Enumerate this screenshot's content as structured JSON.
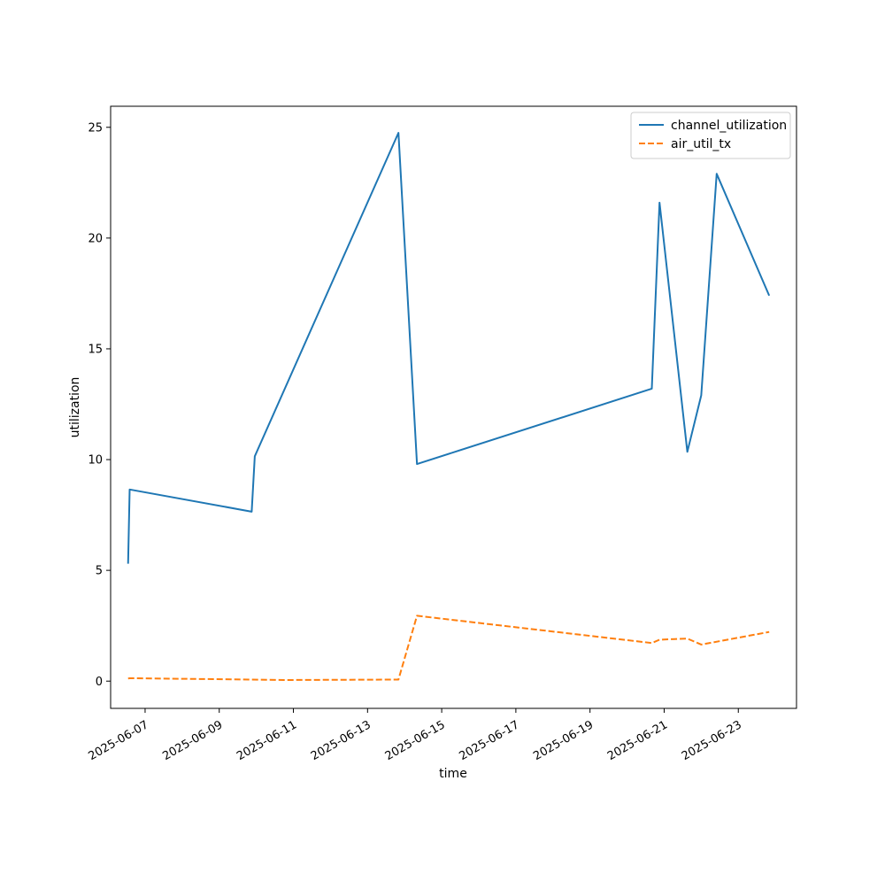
{
  "chart_data": {
    "type": "line",
    "title": "",
    "xlabel": "time",
    "ylabel": "utilization",
    "x_axis_type": "date",
    "xlim": [
      "2025-06-06T01:41",
      "2025-06-24T13:40"
    ],
    "ylim": [
      -1.23,
      25.95
    ],
    "xticks": [
      "2025-06-07",
      "2025-06-09",
      "2025-06-11",
      "2025-06-13",
      "2025-06-15",
      "2025-06-17",
      "2025-06-19",
      "2025-06-21",
      "2025-06-23"
    ],
    "yticks": [
      0,
      5,
      10,
      15,
      20,
      25
    ],
    "grid": false,
    "legend_position": "top-right",
    "series": [
      {
        "name": "channel_utilization",
        "color": "#1f77b4",
        "style": "solid",
        "points": [
          [
            "2025-06-06T13:00",
            5.3
          ],
          [
            "2025-06-06T14:00",
            8.65
          ],
          [
            "2025-06-09T21:00",
            7.65
          ],
          [
            "2025-06-09T23:00",
            10.15
          ],
          [
            "2025-06-13T20:00",
            24.75
          ],
          [
            "2025-06-14T08:00",
            9.8
          ],
          [
            "2025-06-20T16:00",
            13.2
          ],
          [
            "2025-06-20T21:00",
            21.6
          ],
          [
            "2025-06-21T15:00",
            10.35
          ],
          [
            "2025-06-22T00:00",
            12.9
          ],
          [
            "2025-06-22T10:00",
            22.9
          ],
          [
            "2025-06-23T20:00",
            17.4
          ]
        ]
      },
      {
        "name": "air_util_tx",
        "color": "#ff7f0e",
        "style": "dashed",
        "points": [
          [
            "2025-06-06T13:00",
            0.12
          ],
          [
            "2025-06-06T14:00",
            0.13
          ],
          [
            "2025-06-09T21:00",
            0.07
          ],
          [
            "2025-06-10T18:00",
            0.05
          ],
          [
            "2025-06-13T20:00",
            0.07
          ],
          [
            "2025-06-14T08:00",
            2.95
          ],
          [
            "2025-06-20T16:00",
            1.72
          ],
          [
            "2025-06-20T21:00",
            1.87
          ],
          [
            "2025-06-21T15:00",
            1.92
          ],
          [
            "2025-06-22T00:00",
            1.65
          ],
          [
            "2025-06-23T20:00",
            2.22
          ]
        ]
      }
    ]
  }
}
